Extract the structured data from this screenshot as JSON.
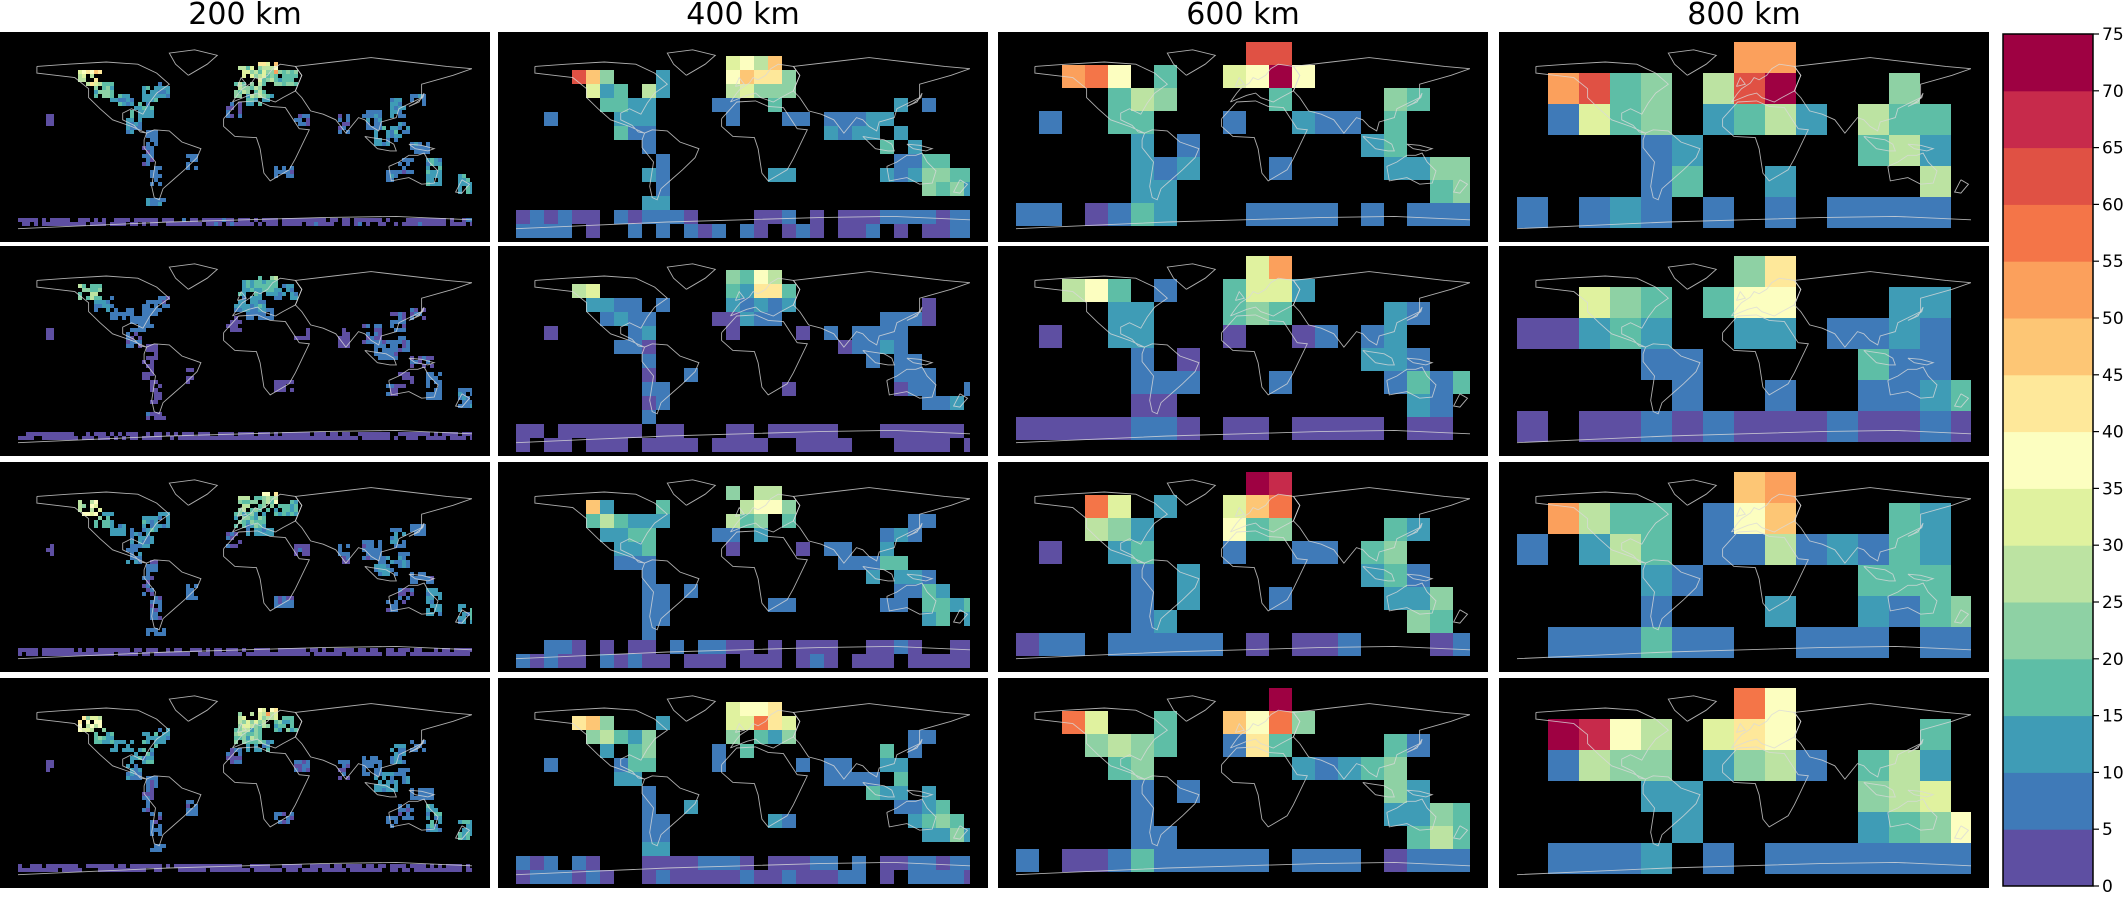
{
  "chart_data": {
    "type": "heatmap",
    "columns": [
      "200 km",
      "400 km",
      "600 km",
      "800 km"
    ],
    "rows": 4,
    "colorbar": {
      "ticks": [
        0,
        5,
        10,
        15,
        20,
        25,
        30,
        35,
        40,
        45,
        50,
        55,
        60,
        65,
        70,
        75
      ],
      "range": [
        0,
        75
      ],
      "colors": [
        "#5e4fa2",
        "#3f7ab8",
        "#3f9cb6",
        "#5ebea6",
        "#8ed1a4",
        "#bce3a2",
        "#e0f29f",
        "#fcfec0",
        "#fee89a",
        "#fdc675",
        "#fba05c",
        "#f47548",
        "#e05144",
        "#c72a4b",
        "#9e0142"
      ]
    },
    "background": "#000000",
    "coastline_color": "#d9d9d9",
    "hotspot_regions": [
      {
        "lon": -123,
        "lat": 58,
        "w": 16,
        "h": 8,
        "v": 55
      },
      {
        "lon": -112,
        "lat": 48,
        "w": 12,
        "h": 10,
        "v": 28
      },
      {
        "lon": -98,
        "lat": 38,
        "w": 18,
        "h": 10,
        "v": 18
      },
      {
        "lon": -82,
        "lat": 30,
        "w": 16,
        "h": 12,
        "v": 20
      },
      {
        "lon": -76,
        "lat": 42,
        "w": 10,
        "h": 10,
        "v": 22
      },
      {
        "lon": -64,
        "lat": 48,
        "w": 8,
        "h": 10,
        "v": 16
      },
      {
        "lon": -88,
        "lat": 14,
        "w": 10,
        "h": 10,
        "v": 14
      },
      {
        "lon": -75,
        "lat": 4,
        "w": 6,
        "h": 12,
        "v": 10
      },
      {
        "lon": -77,
        "lat": -12,
        "w": 6,
        "h": 14,
        "v": 9
      },
      {
        "lon": -71,
        "lat": -32,
        "w": 6,
        "h": 20,
        "v": 10
      },
      {
        "lon": -42,
        "lat": -18,
        "w": 8,
        "h": 10,
        "v": 10
      },
      {
        "lon": -70,
        "lat": -54,
        "w": 12,
        "h": 6,
        "v": 12
      },
      {
        "lon": 8,
        "lat": 62,
        "w": 24,
        "h": 10,
        "v": 40
      },
      {
        "lon": 18,
        "lat": 66,
        "w": 10,
        "h": 8,
        "v": 65
      },
      {
        "lon": 4,
        "lat": 48,
        "w": 24,
        "h": 12,
        "v": 32
      },
      {
        "lon": 12,
        "lat": 38,
        "w": 18,
        "h": 10,
        "v": 20
      },
      {
        "lon": 32,
        "lat": 58,
        "w": 16,
        "h": 12,
        "v": 28
      },
      {
        "lon": -10,
        "lat": 30,
        "w": 10,
        "h": 12,
        "v": 8
      },
      {
        "lon": 30,
        "lat": -28,
        "w": 12,
        "h": 8,
        "v": 10
      },
      {
        "lon": 45,
        "lat": 20,
        "w": 10,
        "h": 10,
        "v": 8
      },
      {
        "lon": 78,
        "lat": 16,
        "w": 8,
        "h": 12,
        "v": 9
      },
      {
        "lon": 100,
        "lat": 20,
        "w": 12,
        "h": 14,
        "v": 12
      },
      {
        "lon": 112,
        "lat": 6,
        "w": 16,
        "h": 12,
        "v": 18
      },
      {
        "lon": 122,
        "lat": 30,
        "w": 10,
        "h": 14,
        "v": 16
      },
      {
        "lon": 138,
        "lat": 38,
        "w": 8,
        "h": 10,
        "v": 12
      },
      {
        "lon": 126,
        "lat": 12,
        "w": 8,
        "h": 10,
        "v": 15
      },
      {
        "lon": 140,
        "lat": -6,
        "w": 16,
        "h": 8,
        "v": 12
      },
      {
        "lon": 150,
        "lat": -26,
        "w": 10,
        "h": 20,
        "v": 20
      },
      {
        "lon": 128,
        "lat": -22,
        "w": 10,
        "h": 10,
        "v": 10
      },
      {
        "lon": 116,
        "lat": -30,
        "w": 6,
        "h": 8,
        "v": 12
      },
      {
        "lon": 175,
        "lat": -38,
        "w": 8,
        "h": 14,
        "v": 22
      },
      {
        "lon": -155,
        "lat": 20,
        "w": 4,
        "h": 4,
        "v": 6
      },
      {
        "lon": 0,
        "lat": -72,
        "w": 360,
        "h": 4,
        "v": 6
      }
    ]
  }
}
